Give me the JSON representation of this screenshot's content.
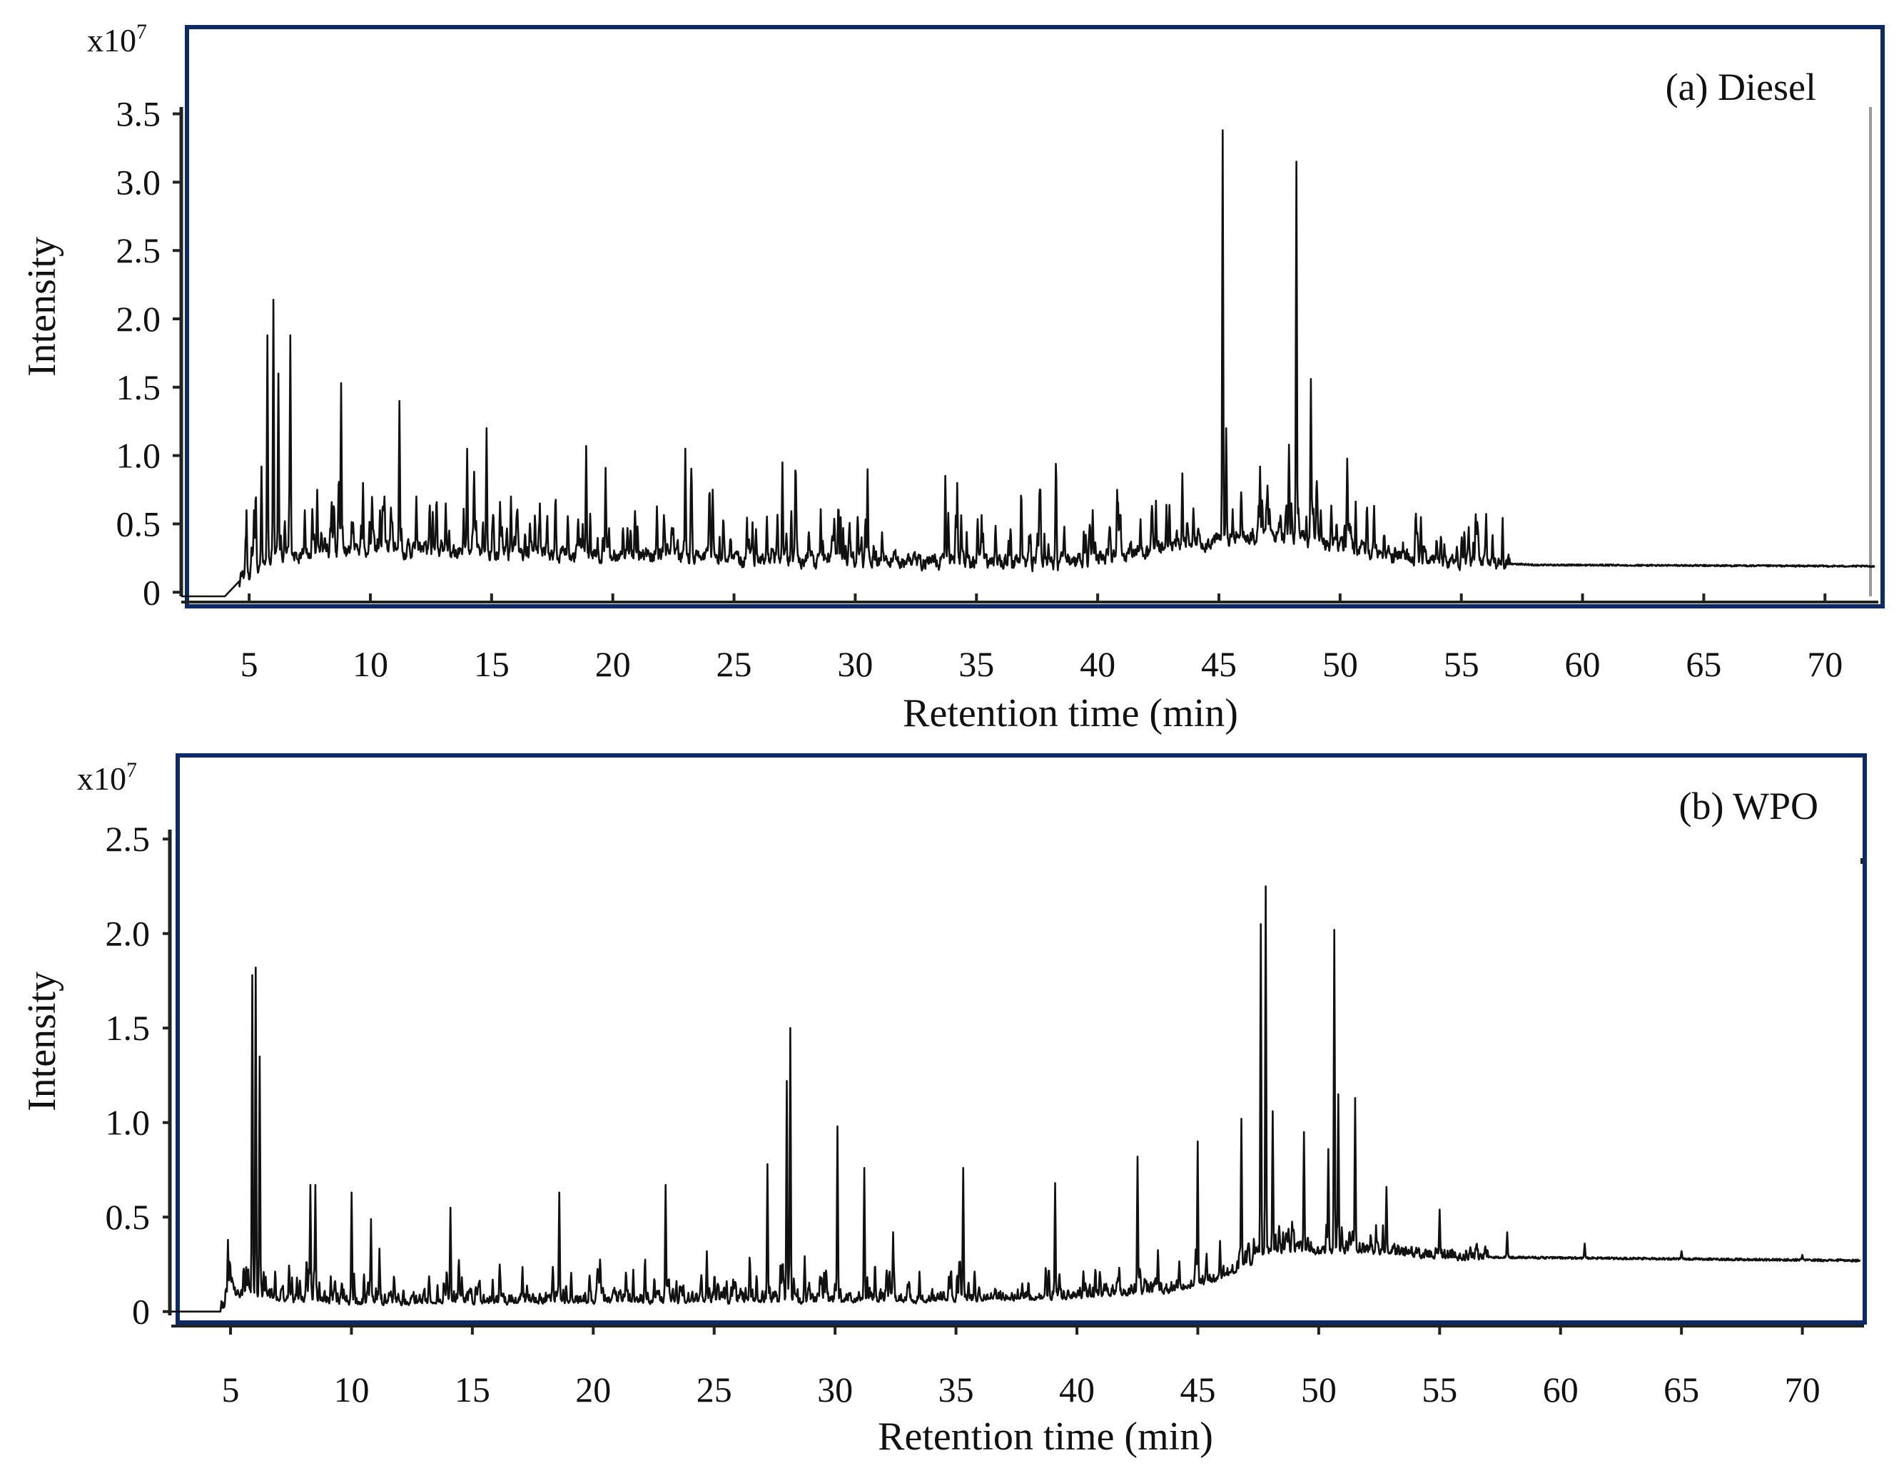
{
  "colors": {
    "frame": "#0b2a66",
    "trace": "#111111",
    "axis": "#222222",
    "background": "#ffffff"
  },
  "chart_data": [
    {
      "type": "line",
      "panel": "top",
      "title": "(a) Diesel",
      "xlabel": "Retention time (min)",
      "ylabel": "Intensity",
      "y_multiplier": "x10",
      "y_exponent": "7",
      "xlim": [
        2.2,
        72.2
      ],
      "ylim": [
        -0.03,
        3.55
      ],
      "x_ticks": [
        5,
        10,
        15,
        20,
        25,
        30,
        35,
        40,
        45,
        50,
        55,
        60,
        65,
        70
      ],
      "x_tick_labels": [
        "5",
        "10",
        "15",
        "20",
        "25",
        "30",
        "35",
        "40",
        "45",
        "50",
        "55",
        "60",
        "65",
        "70"
      ],
      "y_ticks": [
        0,
        0.5,
        1.0,
        1.5,
        2.0,
        2.5,
        3.0,
        3.5
      ],
      "y_tick_labels": [
        "0",
        "0.5",
        "1.0",
        "1.5",
        "2.0",
        "2.5",
        "3.0",
        "3.5"
      ],
      "grid": false,
      "baseline": [
        [
          2.2,
          -0.03
        ],
        [
          4.0,
          -0.03
        ],
        [
          4.8,
          0.12
        ],
        [
          6.0,
          0.26
        ],
        [
          10.0,
          0.32
        ],
        [
          14.0,
          0.3
        ],
        [
          18.0,
          0.28
        ],
        [
          22.0,
          0.28
        ],
        [
          26.0,
          0.24
        ],
        [
          30.0,
          0.24
        ],
        [
          34.0,
          0.22
        ],
        [
          38.0,
          0.21
        ],
        [
          40.0,
          0.24
        ],
        [
          42.0,
          0.3
        ],
        [
          44.0,
          0.36
        ],
        [
          46.0,
          0.4
        ],
        [
          48.0,
          0.42
        ],
        [
          50.0,
          0.34
        ],
        [
          52.0,
          0.28
        ],
        [
          54.0,
          0.24
        ],
        [
          56.0,
          0.22
        ],
        [
          58.0,
          0.2
        ],
        [
          72.0,
          0.19
        ]
      ],
      "peaks": [
        {
          "rt": 4.9,
          "h": 0.6
        },
        {
          "rt": 5.2,
          "h": 0.6
        },
        {
          "rt": 5.5,
          "h": 0.92
        },
        {
          "rt": 5.75,
          "h": 1.88
        },
        {
          "rt": 6.0,
          "h": 2.14
        },
        {
          "rt": 6.2,
          "h": 1.6
        },
        {
          "rt": 6.7,
          "h": 1.88
        },
        {
          "rt": 7.3,
          "h": 0.6
        },
        {
          "rt": 7.8,
          "h": 0.75
        },
        {
          "rt": 8.8,
          "h": 1.53
        },
        {
          "rt": 9.7,
          "h": 0.8
        },
        {
          "rt": 10.4,
          "h": 0.6
        },
        {
          "rt": 11.2,
          "h": 1.4
        },
        {
          "rt": 11.9,
          "h": 0.7
        },
        {
          "rt": 13.1,
          "h": 0.65
        },
        {
          "rt": 14.0,
          "h": 1.05
        },
        {
          "rt": 14.8,
          "h": 1.2
        },
        {
          "rt": 15.8,
          "h": 0.7
        },
        {
          "rt": 17.0,
          "h": 0.65
        },
        {
          "rt": 18.9,
          "h": 1.07
        },
        {
          "rt": 20.6,
          "h": 0.47
        },
        {
          "rt": 23.0,
          "h": 1.05
        },
        {
          "rt": 27.0,
          "h": 0.95
        },
        {
          "rt": 29.4,
          "h": 0.55
        },
        {
          "rt": 30.5,
          "h": 0.9
        },
        {
          "rt": 34.2,
          "h": 0.8
        },
        {
          "rt": 37.6,
          "h": 0.72
        },
        {
          "rt": 40.8,
          "h": 0.75
        },
        {
          "rt": 43.5,
          "h": 0.87
        },
        {
          "rt": 45.15,
          "h": 3.38
        },
        {
          "rt": 45.3,
          "h": 1.2
        },
        {
          "rt": 46.7,
          "h": 0.92
        },
        {
          "rt": 47.9,
          "h": 1.08
        },
        {
          "rt": 48.2,
          "h": 3.15
        },
        {
          "rt": 48.8,
          "h": 1.56
        },
        {
          "rt": 49.2,
          "h": 0.6
        },
        {
          "rt": 50.4,
          "h": 0.5
        },
        {
          "rt": 52.0,
          "h": 0.34
        },
        {
          "rt": 54.0,
          "h": 0.27
        },
        {
          "rt": 56.3,
          "h": 0.24
        }
      ]
    },
    {
      "type": "line",
      "panel": "bottom",
      "title": "(b) WPO",
      "xlabel": "Retention time (min)",
      "ylabel": "Intensity",
      "y_multiplier": "x10",
      "y_exponent": "7",
      "xlim": [
        2.55,
        72.55
      ],
      "ylim": [
        -0.02,
        2.55
      ],
      "x_ticks": [
        5,
        10,
        15,
        20,
        25,
        30,
        35,
        40,
        45,
        50,
        55,
        60,
        65,
        70
      ],
      "x_tick_labels": [
        "5",
        "10",
        "15",
        "20",
        "25",
        "30",
        "35",
        "40",
        "45",
        "50",
        "55",
        "60",
        "65",
        "70"
      ],
      "y_ticks": [
        0,
        0.5,
        1.0,
        1.5,
        2.0,
        2.5
      ],
      "y_tick_labels": [
        "0",
        "0.5",
        "1.0",
        "1.5",
        "2.0",
        "2.5"
      ],
      "grid": false,
      "baseline": [
        [
          2.55,
          0.0
        ],
        [
          4.6,
          0.0
        ],
        [
          5.0,
          0.1
        ],
        [
          6.0,
          0.08
        ],
        [
          10.0,
          0.05
        ],
        [
          20.0,
          0.06
        ],
        [
          30.0,
          0.06
        ],
        [
          40.0,
          0.08
        ],
        [
          44.0,
          0.12
        ],
        [
          46.0,
          0.18
        ],
        [
          48.0,
          0.32
        ],
        [
          52.0,
          0.32
        ],
        [
          55.0,
          0.29
        ],
        [
          72.5,
          0.27
        ]
      ],
      "peaks": [
        {
          "rt": 4.9,
          "h": 0.38
        },
        {
          "rt": 5.9,
          "h": 1.78
        },
        {
          "rt": 6.05,
          "h": 1.82
        },
        {
          "rt": 6.2,
          "h": 1.35
        },
        {
          "rt": 8.3,
          "h": 0.67
        },
        {
          "rt": 8.5,
          "h": 0.67
        },
        {
          "rt": 10.0,
          "h": 0.63
        },
        {
          "rt": 10.8,
          "h": 0.49
        },
        {
          "rt": 14.1,
          "h": 0.55
        },
        {
          "rt": 18.6,
          "h": 0.63
        },
        {
          "rt": 23.0,
          "h": 0.67
        },
        {
          "rt": 24.7,
          "h": 0.32
        },
        {
          "rt": 27.2,
          "h": 0.78
        },
        {
          "rt": 28.0,
          "h": 1.22
        },
        {
          "rt": 28.15,
          "h": 1.5
        },
        {
          "rt": 30.1,
          "h": 0.98
        },
        {
          "rt": 31.2,
          "h": 0.76
        },
        {
          "rt": 32.4,
          "h": 0.42
        },
        {
          "rt": 35.3,
          "h": 0.76
        },
        {
          "rt": 39.1,
          "h": 0.68
        },
        {
          "rt": 42.5,
          "h": 0.82
        },
        {
          "rt": 45.0,
          "h": 0.9
        },
        {
          "rt": 46.8,
          "h": 1.02
        },
        {
          "rt": 47.6,
          "h": 2.05
        },
        {
          "rt": 47.8,
          "h": 2.25
        },
        {
          "rt": 48.1,
          "h": 1.06
        },
        {
          "rt": 49.4,
          "h": 0.95
        },
        {
          "rt": 50.4,
          "h": 0.86
        },
        {
          "rt": 50.65,
          "h": 2.02
        },
        {
          "rt": 50.8,
          "h": 1.15
        },
        {
          "rt": 51.5,
          "h": 1.13
        },
        {
          "rt": 52.8,
          "h": 0.66
        },
        {
          "rt": 55.0,
          "h": 0.54
        },
        {
          "rt": 57.8,
          "h": 0.42
        },
        {
          "rt": 61.0,
          "h": 0.36
        },
        {
          "rt": 65.0,
          "h": 0.32
        },
        {
          "rt": 70.0,
          "h": 0.3
        }
      ]
    }
  ]
}
